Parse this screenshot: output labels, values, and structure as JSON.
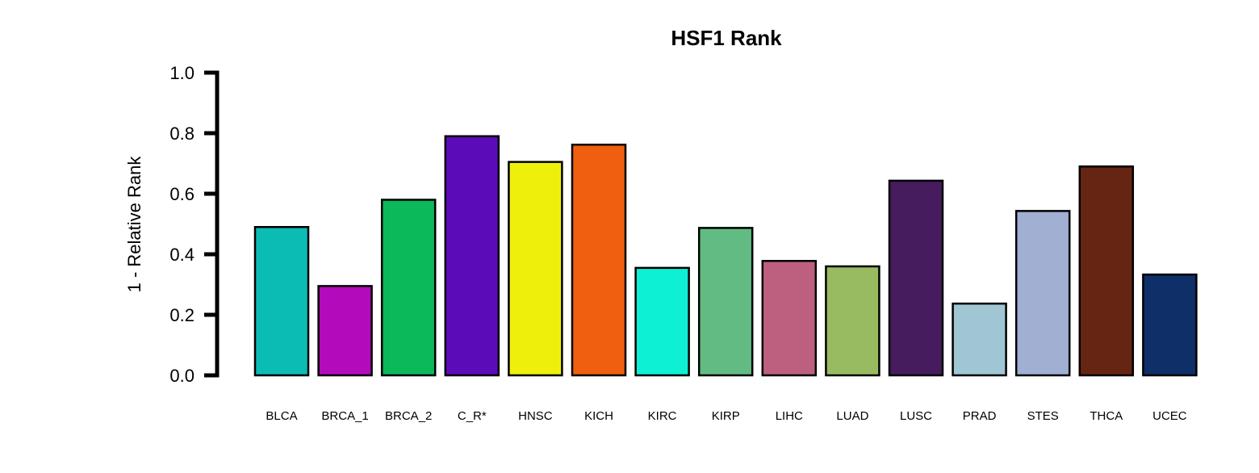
{
  "chart_data": {
    "type": "bar",
    "title": "HSF1 Rank",
    "xlabel": "",
    "ylabel": "1 - Relative Rank",
    "ylim": [
      0,
      1.0
    ],
    "yticks": [
      "0.0",
      "0.2",
      "0.4",
      "0.6",
      "0.8",
      "1.0"
    ],
    "grid": false,
    "categories": [
      "BLCA",
      "BRCA_1",
      "BRCA_2",
      "C_R*",
      "HNSC",
      "KICH",
      "KIRC",
      "KIRP",
      "LIHC",
      "LUAD",
      "LUSC",
      "PRAD",
      "STES",
      "THCA",
      "UCEC"
    ],
    "values": [
      0.49,
      0.295,
      0.58,
      0.79,
      0.705,
      0.762,
      0.355,
      0.487,
      0.378,
      0.36,
      0.643,
      0.237,
      0.543,
      0.69,
      0.333
    ],
    "colors": [
      "#0bbcb5",
      "#b30bbc",
      "#0bb85a",
      "#5c0bb8",
      "#eef00b",
      "#f05f10",
      "#0ef0d4",
      "#62bb82",
      "#bd6080",
      "#98bb62",
      "#461c5f",
      "#a0c6d4",
      "#a0afd2",
      "#652512",
      "#0f2f68"
    ]
  }
}
